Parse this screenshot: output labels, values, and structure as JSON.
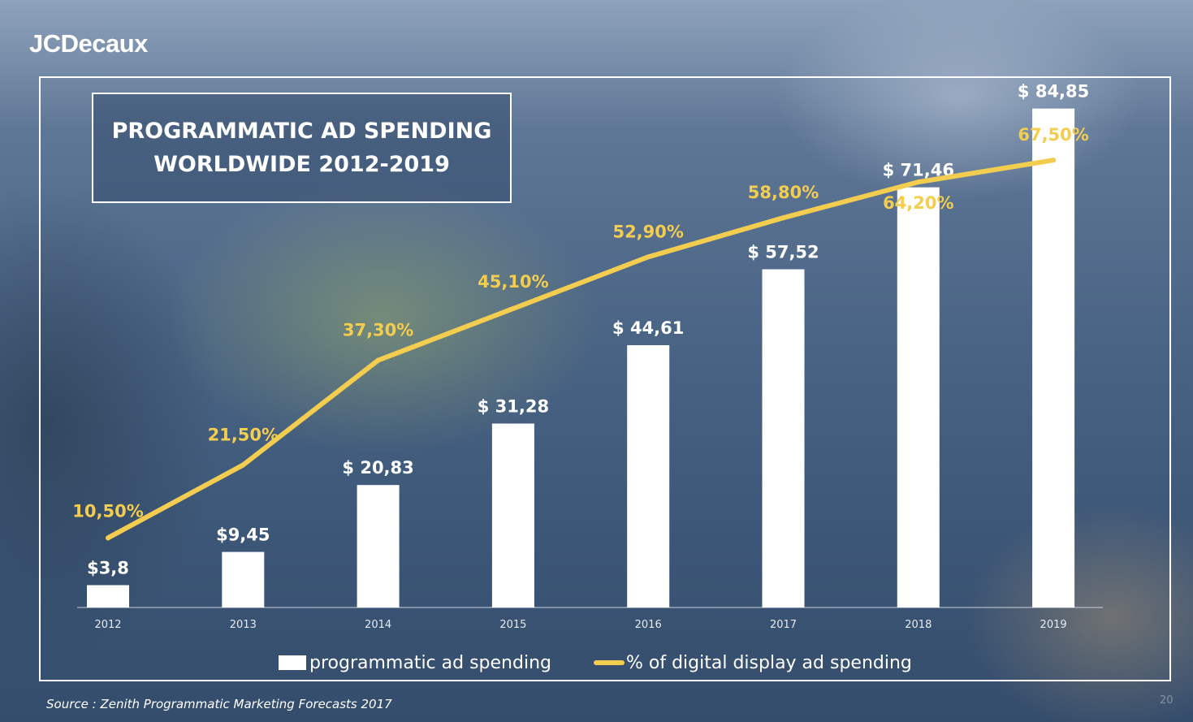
{
  "brand": "JCDecaux",
  "title_line1": "PROGRAMMATIC AD SPENDING",
  "title_line2": "WORLDWIDE 2012-2019",
  "source": "Source : Zenith Programmatic Marketing Forecasts 2017",
  "page_number": "20",
  "colors": {
    "bar": "#ffffff",
    "line": "#f3cd4f",
    "text": "#ffffff"
  },
  "chart_data": {
    "type": "bar",
    "title": "PROGRAMMATIC AD SPENDING WORLDWIDE 2012-2019",
    "categories": [
      "2012",
      "2013",
      "2014",
      "2015",
      "2016",
      "2017",
      "2018",
      "2019"
    ],
    "series": [
      {
        "name": "programmatic ad spending",
        "type": "bar",
        "values": [
          3.8,
          9.45,
          20.83,
          31.28,
          44.61,
          57.52,
          71.46,
          84.85
        ],
        "labels": [
          "$3,8",
          "$9,45",
          "$ 20,83",
          "$ 31,28",
          "$ 44,61",
          "$ 57,52",
          "$ 71,46",
          "$ 84,85"
        ]
      },
      {
        "name": "% of digital display ad spending",
        "type": "line",
        "values": [
          10.5,
          21.5,
          37.3,
          45.1,
          52.9,
          58.8,
          64.2,
          67.5
        ],
        "labels": [
          "10,50%",
          "21,50%",
          "37,30%",
          "45,10%",
          "52,90%",
          "58,80%",
          "64,20%",
          "67,50%"
        ]
      }
    ],
    "legend": "bottom",
    "grid": false
  }
}
